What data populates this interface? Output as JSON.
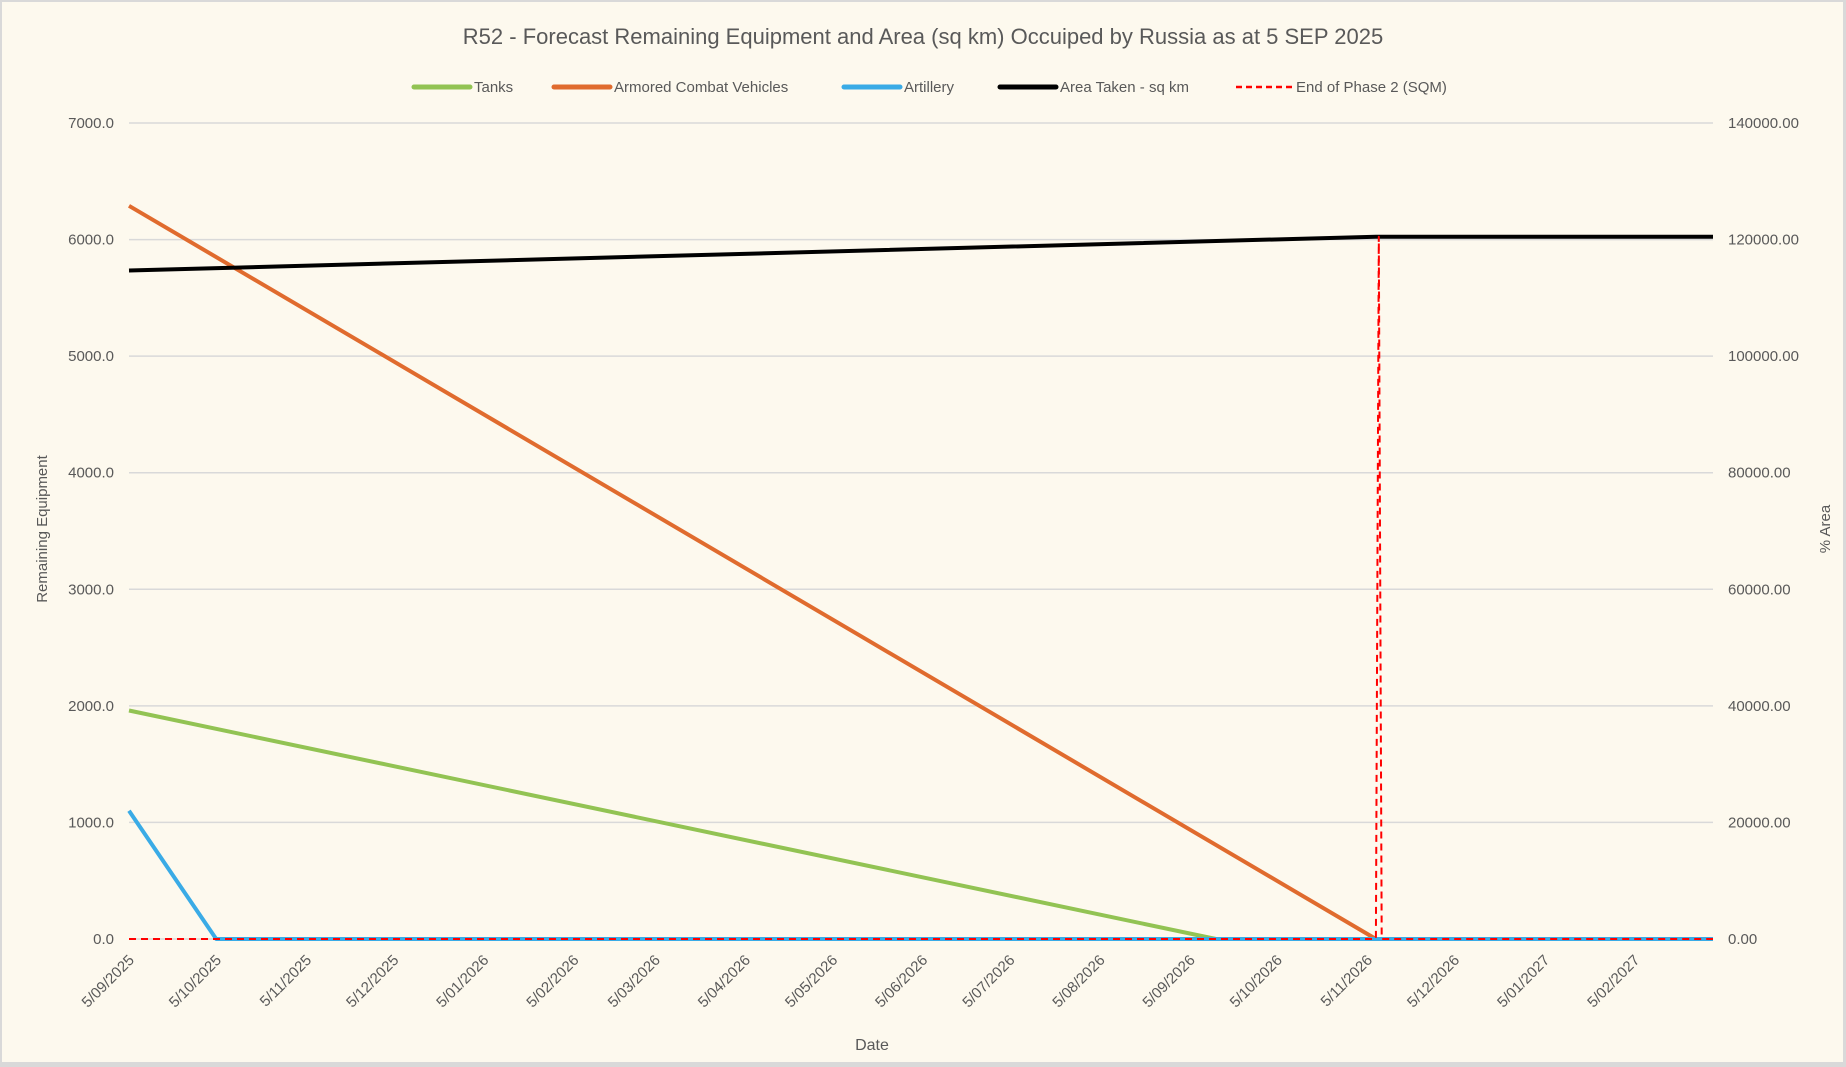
{
  "chart_data": {
    "type": "line",
    "title": "R52 - Forecast Remaining Equipment and Area (sq km) Occuiped by Russia as at 5 SEP 2025",
    "xlabel": "Date",
    "ylabel": "Remaining Equipment",
    "y2label": "% Area",
    "ylim": [
      0,
      7000
    ],
    "y2lim": [
      0,
      140000
    ],
    "xlim": [
      "2025-09-05",
      "2027-03-04"
    ],
    "yticks": [
      "0.0",
      "1000.0",
      "2000.0",
      "3000.0",
      "4000.0",
      "5000.0",
      "6000.0",
      "7000.0"
    ],
    "y2ticks": [
      "0.00",
      "20000.00",
      "40000.00",
      "60000.00",
      "80000.00",
      "100000.00",
      "120000.00",
      "140000.00"
    ],
    "xticks": [
      "5/09/2025",
      "5/10/2025",
      "5/11/2025",
      "5/12/2025",
      "5/01/2026",
      "5/02/2026",
      "5/03/2026",
      "5/04/2026",
      "5/05/2026",
      "5/06/2026",
      "5/07/2026",
      "5/08/2026",
      "5/09/2026",
      "5/10/2026",
      "5/11/2026",
      "5/12/2026",
      "5/01/2027",
      "5/02/2027"
    ],
    "grid": true,
    "legend": "top",
    "series": [
      {
        "name": "Tanks",
        "color": "#92c353",
        "axis": "left",
        "dash": false,
        "points": [
          [
            "2025-09-05",
            1960
          ],
          [
            "2026-09-14",
            0
          ],
          [
            "2027-03-04",
            0
          ]
        ]
      },
      {
        "name": "Armored Combat Vehicles",
        "color": "#e06b2e",
        "axis": "left",
        "dash": false,
        "points": [
          [
            "2025-09-05",
            6290
          ],
          [
            "2026-11-08",
            0
          ],
          [
            "2027-03-04",
            0
          ]
        ]
      },
      {
        "name": "Artillery",
        "color": "#3aabe6",
        "axis": "left",
        "dash": false,
        "points": [
          [
            "2025-09-05",
            1100
          ],
          [
            "2025-10-05",
            0
          ],
          [
            "2027-03-04",
            0
          ]
        ]
      },
      {
        "name": "Area Taken - sq km",
        "color": "#000000",
        "axis": "right",
        "dash": false,
        "points": [
          [
            "2025-09-05",
            114700
          ],
          [
            "2026-11-08",
            120500
          ],
          [
            "2027-03-04",
            120500
          ]
        ]
      },
      {
        "name": "End of Phase 2 (SQM)",
        "color": "#ff0000",
        "axis": "right",
        "dash": true,
        "points": [
          [
            "2025-09-05",
            0
          ],
          [
            "2026-11-08",
            0
          ],
          [
            "2026-11-09",
            120500
          ],
          [
            "2026-11-10",
            0
          ],
          [
            "2027-03-04",
            0
          ]
        ]
      }
    ]
  }
}
